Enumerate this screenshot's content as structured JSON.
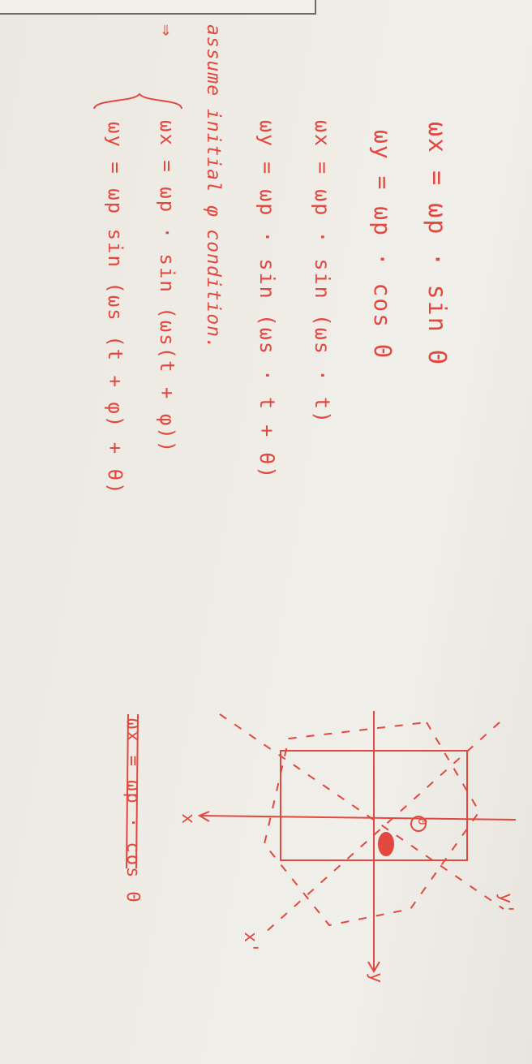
{
  "equations": {
    "eq1": "ωx = ωp · sin Θ",
    "eq2": "ωy = ωp · cos Θ",
    "eq3": "ωx = ωp · sin (ωs · t)",
    "eq4": "ωy = ωp · sin (ωs · t + θ)"
  },
  "note": "assume initial φ condition.",
  "arrow": "⇒",
  "system": {
    "line1": "ωx = ωp · sin (ωs(t + φ))",
    "line2": "ωy = ωp  sin (ωs (t + φ) + θ)"
  },
  "crossed_out": "ωx = ωp · cos Θ",
  "diagram_labels": {
    "theta": "Θ",
    "y": "y",
    "x": "x",
    "y_prime": "y'",
    "x_prime": "x'"
  },
  "colors": {
    "ink": "#e2483f",
    "paper": "#efece6",
    "frame": "#6f6a65"
  }
}
